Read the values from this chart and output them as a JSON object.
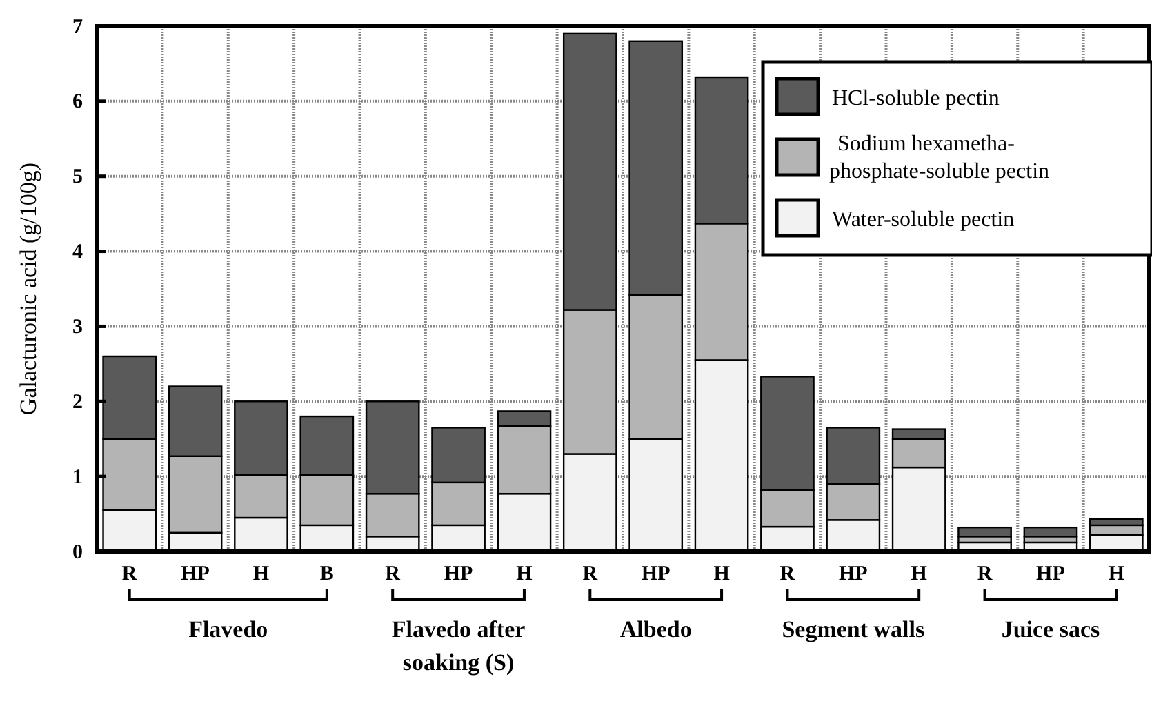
{
  "chart_data": {
    "type": "bar",
    "stacked": true,
    "ylabel": "Galacturonic acid (g/100g)",
    "categories": [
      "R",
      "HP",
      "H",
      "B",
      "R",
      "HP",
      "H",
      "R",
      "HP",
      "H",
      "R",
      "HP",
      "H",
      "R",
      "HP",
      "H"
    ],
    "series": [
      {
        "name": "Water-soluble pectin",
        "color": "#f2f2f2",
        "values": [
          0.55,
          0.25,
          0.45,
          0.35,
          0.2,
          0.35,
          0.77,
          1.3,
          1.5,
          2.55,
          0.33,
          0.42,
          1.12,
          0.12,
          0.12,
          0.22
        ]
      },
      {
        "name": "Sodium hexametha-phosphate-soluble pectin",
        "color": "#b4b4b4",
        "values": [
          0.95,
          1.02,
          0.57,
          0.67,
          0.57,
          0.57,
          0.9,
          1.92,
          1.92,
          1.82,
          0.49,
          0.48,
          0.38,
          0.08,
          0.08,
          0.13
        ]
      },
      {
        "name": "HCl-soluble pectin",
        "color": "#5a5a5a",
        "values": [
          1.1,
          0.93,
          0.98,
          0.78,
          1.23,
          0.73,
          0.2,
          3.68,
          3.38,
          1.95,
          1.51,
          0.75,
          0.13,
          0.12,
          0.12,
          0.08
        ]
      }
    ],
    "ylim": [
      0,
      7
    ],
    "yticks": [
      0,
      1,
      2,
      3,
      4,
      5,
      6,
      7
    ],
    "grid": true,
    "legend": "top right",
    "annotations": [
      "Flavedo",
      "Flavedo after soaking (S)",
      "Albedo",
      "Segment walls",
      "Juice sacs"
    ]
  }
}
